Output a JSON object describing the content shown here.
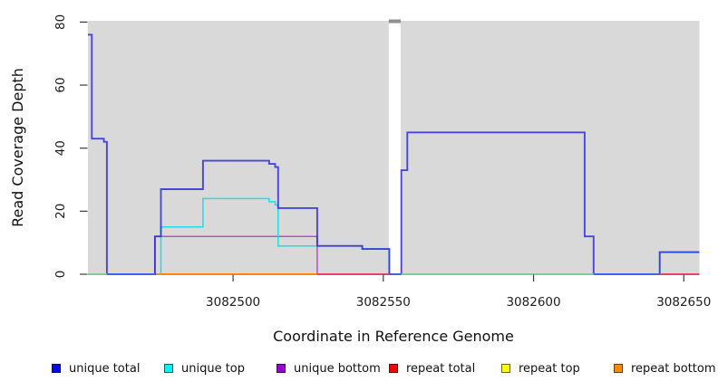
{
  "chart_data": {
    "type": "line",
    "subtype": "step-coverage-plot",
    "title": "",
    "xlabel": "Coordinate in Reference Genome",
    "ylabel": "Read Coverage Depth",
    "xlim": [
      3082451.7,
      3082655.2
    ],
    "ylim": [
      0,
      80.4
    ],
    "x_ticks": [
      3082500,
      3082550,
      3082600,
      3082650
    ],
    "x_tick_labels": [
      "3082500",
      "3082550",
      "3082600",
      "3082650"
    ],
    "y_ticks": [
      0,
      20,
      40,
      60,
      80
    ],
    "y_tick_labels": [
      "0",
      "20",
      "40",
      "60",
      "80"
    ],
    "grid": false,
    "plot_bg": "#d9d9d9",
    "gap": {
      "x0": 3082551.8,
      "x1": 3082555.8,
      "fill": "#ffffff",
      "cap_color": "#8f8f8f"
    },
    "series": [
      {
        "name": "repeat top",
        "color": "#ffff00",
        "opacity": 0.9,
        "width": 1.5,
        "steps": [
          [
            3082451.7,
            0
          ]
        ]
      },
      {
        "name": "repeat bottom",
        "color": "#ff8c00",
        "opacity": 0.9,
        "width": 1.5,
        "steps": [
          [
            3082451.7,
            0
          ]
        ]
      },
      {
        "name": "repeat total",
        "color": "#ff0000",
        "opacity": 0.9,
        "width": 1.5,
        "steps": [
          [
            3082451.7,
            0
          ]
        ]
      },
      {
        "name": "unique bottom",
        "color": "#9932cc",
        "opacity": 0.78,
        "width": 1.5,
        "steps": [
          [
            3082451.7,
            0
          ],
          [
            3082474,
            12
          ],
          [
            3082528,
            0
          ]
        ]
      },
      {
        "name": "unique top",
        "color": "#00dce8",
        "opacity": 0.85,
        "width": 1.5,
        "steps": [
          [
            3082451.7,
            0
          ],
          [
            3082476,
            15
          ],
          [
            3082490,
            24
          ],
          [
            3082512,
            23
          ],
          [
            3082514,
            22
          ],
          [
            3082515,
            9
          ],
          [
            3082543,
            8
          ],
          [
            3082552,
            0
          ],
          [
            3082642,
            7
          ]
        ]
      },
      {
        "name": "unique total",
        "color": "#2b24de",
        "opacity": 0.82,
        "width": 1.9,
        "steps": [
          [
            3082451.7,
            76
          ],
          [
            3082453,
            43
          ],
          [
            3082457,
            42
          ],
          [
            3082458,
            0
          ],
          [
            3082474,
            12
          ],
          [
            3082476,
            27
          ],
          [
            3082490,
            36
          ],
          [
            3082512,
            35
          ],
          [
            3082514,
            34
          ],
          [
            3082515,
            21
          ],
          [
            3082528,
            9
          ],
          [
            3082543,
            8
          ],
          [
            3082552,
            0
          ],
          [
            3082556,
            33
          ],
          [
            3082558,
            45
          ],
          [
            3082617,
            12
          ],
          [
            3082620,
            0
          ],
          [
            3082642,
            7
          ]
        ]
      }
    ],
    "baseline_segments": [
      {
        "x0": 3082451.7,
        "x1": 3082458,
        "color": "#86ce8e"
      },
      {
        "x0": 3082458,
        "x1": 3082474,
        "color": "#4664e4"
      },
      {
        "x0": 3082474.5,
        "x1": 3082528,
        "color": "#ff8c00"
      },
      {
        "x0": 3082528,
        "x1": 3082551.8,
        "color": "#dc4a5f"
      },
      {
        "x0": 3082551.8,
        "x1": 3082556,
        "color": "#4664e4"
      },
      {
        "x0": 3082556,
        "x1": 3082620,
        "color": "#86ce8e"
      },
      {
        "x0": 3082620,
        "x1": 3082642,
        "color": "#4664e4"
      },
      {
        "x0": 3082642,
        "x1": 3082655.2,
        "color": "#dc4a5f"
      }
    ],
    "legend": {
      "position": "bottom",
      "items": [
        {
          "label": "unique total",
          "color": "#0808ef"
        },
        {
          "label": "unique top",
          "color": "#00f5f5"
        },
        {
          "label": "unique bottom",
          "color": "#9400d3"
        },
        {
          "label": "repeat total",
          "color": "#f50000"
        },
        {
          "label": "repeat top",
          "color": "#ffff00"
        },
        {
          "label": "repeat bottom",
          "color": "#ff8c00"
        }
      ]
    }
  }
}
